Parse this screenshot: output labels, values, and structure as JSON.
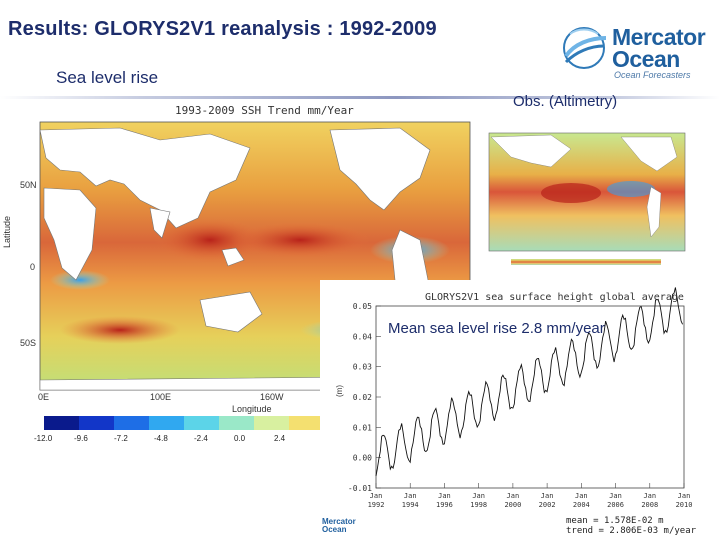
{
  "slide": {
    "title": "Results: GLORYS2V1 reanalysis : 1992-2009",
    "subtitle": "Sea level rise",
    "obs_label": "Obs. (Altimetry)",
    "logo": {
      "line1": "Mercator",
      "line2": "Ocean",
      "line3": "Ocean Forecasters"
    },
    "overlay_text": "Mean sea level rise 2.8 mm/year"
  },
  "map": {
    "title": "1993-2009 SSH Trend mm/Year",
    "y_axis_label": "Latitude",
    "x_axis_label": "Longitude",
    "lat_ticks": [
      "50N",
      "0",
      "50S"
    ],
    "lon_ticks": [
      "0E",
      "100E",
      "160W"
    ],
    "colorbar_ticks": [
      "-12.0",
      "-9.6",
      "-7.2",
      "-4.8",
      "-2.4",
      "0.0",
      "2.4"
    ],
    "colorbar_colors": [
      "#0a1a8c",
      "#1236c8",
      "#1e6ee6",
      "#30a8f0",
      "#5cd4e8",
      "#9ae8c8",
      "#d8f0a0",
      "#f4e070"
    ]
  },
  "chart_data": {
    "type": "line",
    "title": "GLORYS2V1 sea surface height global average",
    "ylabel": "m",
    "ylim": [
      -0.01,
      0.05
    ],
    "yticks": [
      -0.01,
      0.0,
      0.01,
      0.02,
      0.03,
      0.04,
      0.05
    ],
    "x_tick_labels": [
      "Jan 1992",
      "Jan 1994",
      "Jan 1996",
      "Jan 1998",
      "Jan 2000",
      "Jan 2002",
      "Jan 2004",
      "Jan 2006",
      "Jan 2008",
      "Jan 2010"
    ],
    "xlim": [
      1992.0,
      2010.0
    ],
    "series": [
      {
        "name": "",
        "x_start": 1992.0,
        "x_end": 2009.92,
        "trend_per_year": 0.0028,
        "intercept": 0.0,
        "seasonal_amplitude": 0.0065
      }
    ],
    "stats": {
      "mean_label": "mean =",
      "mean_value": "1.578E-02 m",
      "trend_label": "trend =",
      "trend_value": "2.806E-03 m/year"
    }
  },
  "bottom_logo": {
    "line1": "Mercator",
    "line2": "Ocean"
  }
}
